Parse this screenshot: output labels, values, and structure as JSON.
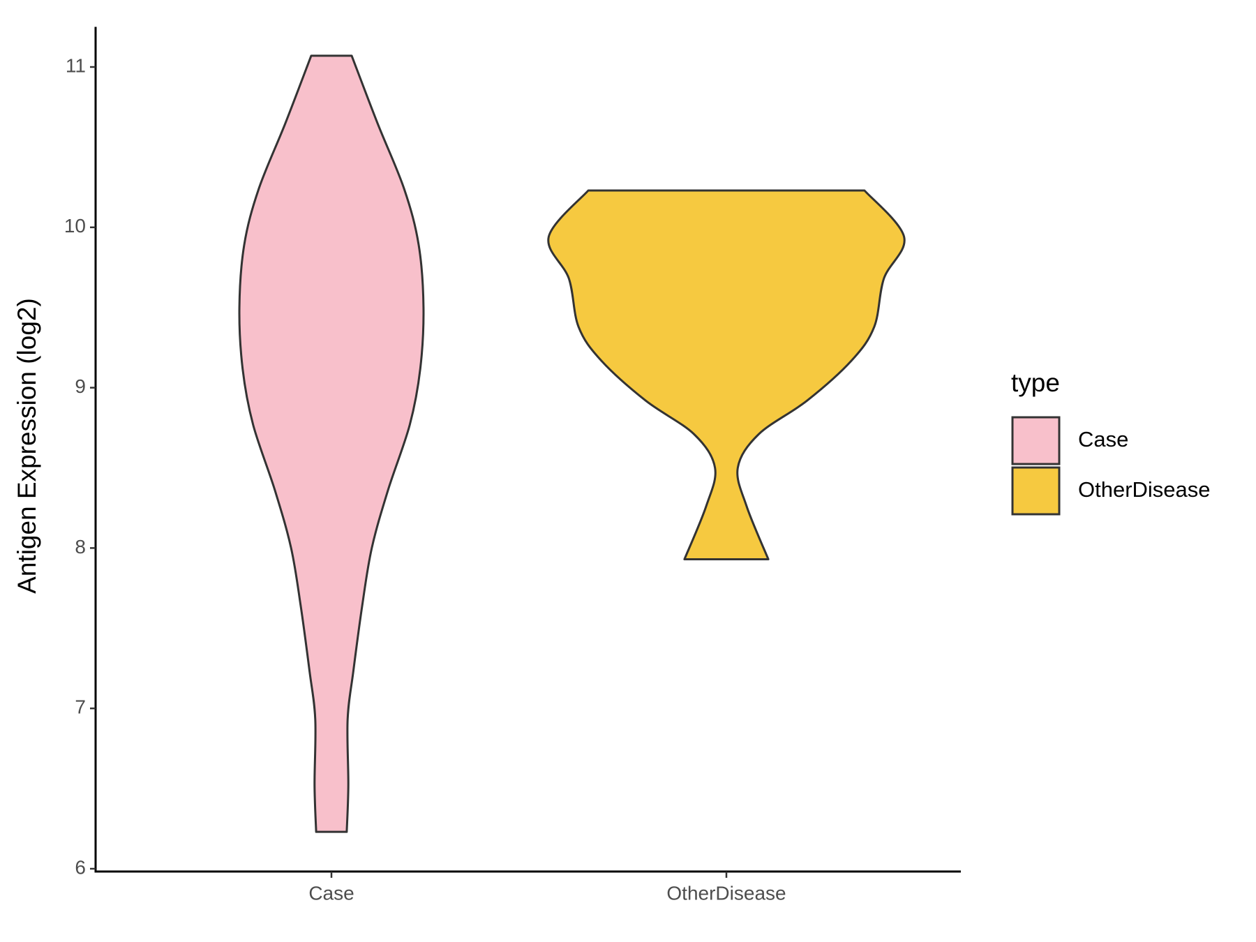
{
  "chart_data": {
    "type": "violin",
    "y_label": "Antigen Expression (log2)",
    "categories": [
      "Case",
      "OtherDisease"
    ],
    "legend_title": "type",
    "legend": "right",
    "ylim": [
      6,
      11.25
    ],
    "yticks": [
      6,
      7,
      8,
      9,
      10,
      11
    ],
    "series": [
      {
        "name": "Case",
        "color": "#f8c0cb",
        "y": [
          11.07,
          10.65,
          10.24,
          9.89,
          9.5,
          9.12,
          8.77,
          8.36,
          8.0,
          7.64,
          7.23,
          6.93,
          6.52,
          6.23
        ],
        "density": [
          0.114,
          0.259,
          0.409,
          0.491,
          0.518,
          0.5,
          0.441,
          0.318,
          0.227,
          0.173,
          0.123,
          0.091,
          0.095,
          0.086
        ]
      },
      {
        "name": "OtherDisease",
        "color": "#f6c940",
        "y": [
          10.23,
          9.94,
          9.68,
          9.38,
          9.17,
          8.92,
          8.71,
          8.5,
          8.26,
          7.93
        ],
        "density": [
          0.777,
          1,
          0.886,
          0.832,
          0.705,
          0.455,
          0.182,
          0.064,
          0.114,
          0.236
        ]
      }
    ]
  }
}
